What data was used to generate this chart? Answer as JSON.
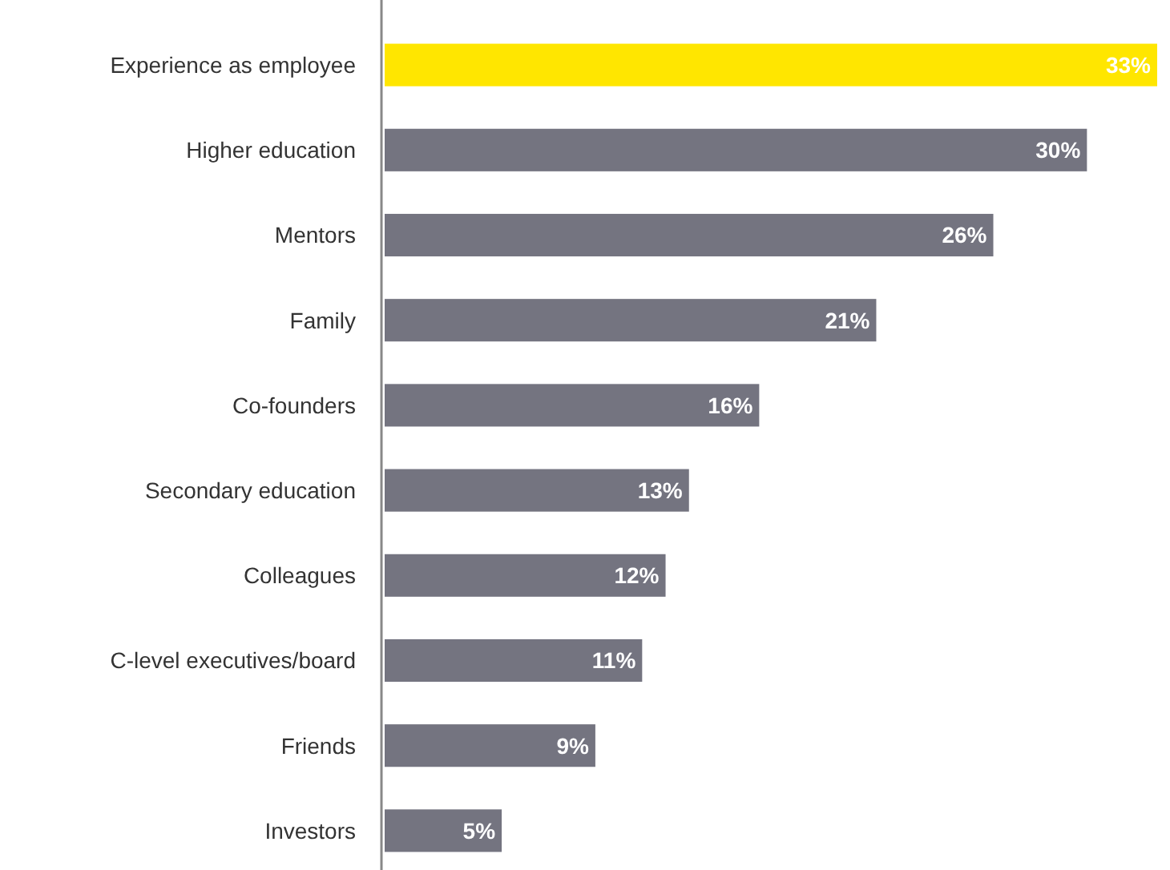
{
  "chart_data": {
    "type": "bar",
    "orientation": "horizontal",
    "categories": [
      "Experience as employee",
      "Higher education",
      "Mentors",
      "Family",
      "Co-founders",
      "Secondary education",
      "Colleagues",
      "C-level executives/board",
      "Friends",
      "Investors"
    ],
    "values": [
      33,
      30,
      26,
      21,
      16,
      13,
      12,
      11,
      9,
      5
    ],
    "colors": [
      "#ffe600",
      "#747480",
      "#747480",
      "#747480",
      "#747480",
      "#747480",
      "#747480",
      "#747480",
      "#747480",
      "#747480"
    ],
    "value_labels": [
      "33%",
      "30%",
      "26%",
      "21%",
      "16%",
      "13%",
      "12%",
      "11%",
      "9%",
      "5%"
    ]
  }
}
